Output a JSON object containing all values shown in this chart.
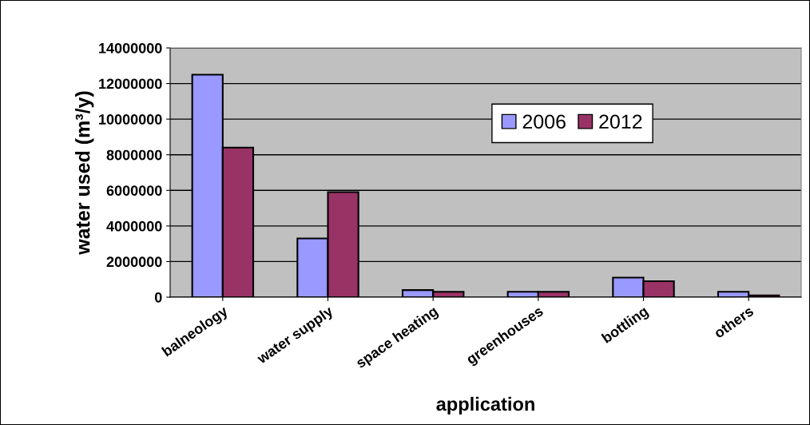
{
  "chart_data": {
    "type": "bar",
    "xlabel": "application",
    "ylabel": "water used (m³/y)",
    "categories": [
      "balneology",
      "water supply",
      "space heating",
      "greenhouses",
      "bottling",
      "others"
    ],
    "series": [
      {
        "name": "2006",
        "color": "#9999ff",
        "values": [
          12500000,
          3300000,
          400000,
          300000,
          1100000,
          300000
        ]
      },
      {
        "name": "2012",
        "color": "#993366",
        "values": [
          8400000,
          5900000,
          300000,
          300000,
          900000,
          100000
        ]
      }
    ],
    "ylim": [
      0,
      14000000
    ],
    "yticks": [
      0,
      2000000,
      4000000,
      6000000,
      8000000,
      10000000,
      12000000,
      14000000
    ],
    "grid": "y",
    "legend": "top right"
  }
}
